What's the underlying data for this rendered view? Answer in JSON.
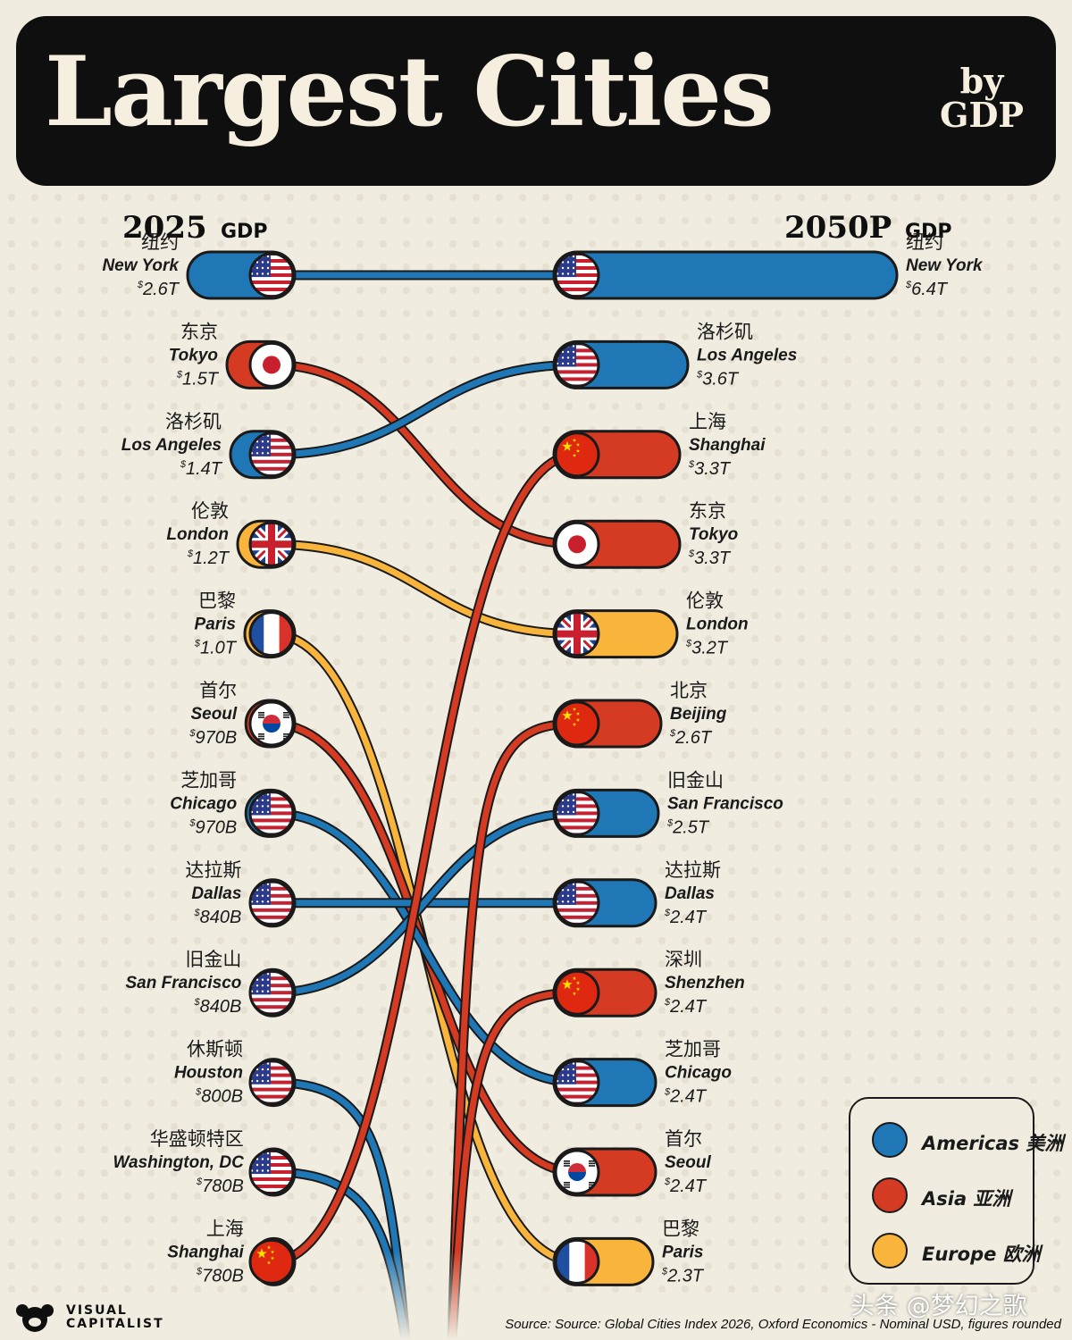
{
  "header": {
    "title": "Largest Cities",
    "by": "by",
    "gdp": "GDP"
  },
  "left_header": {
    "year": "2025",
    "suffix": "GDP"
  },
  "right_header": {
    "year": "2050P",
    "suffix": "GDP"
  },
  "legend": [
    {
      "label": "Americas 美洲",
      "region": "Americas"
    },
    {
      "label": "Asia 亚洲",
      "region": "Asia"
    },
    {
      "label": "Europe 欧洲",
      "region": "Europe"
    }
  ],
  "colors": {
    "Americas": "#1f77b6",
    "Asia": "#d53a22",
    "Europe": "#f9b43c",
    "outline": "#1a1a1a",
    "background": "#f1ece0"
  },
  "chart_data": {
    "type": "bar",
    "title": "Largest Cities by GDP",
    "series": [
      {
        "name": "2025 GDP",
        "unit": "$ trillion",
        "cities": [
          {
            "zh": "纽约",
            "en": "New York",
            "value": 2.6,
            "label": "2.6T",
            "region": "Americas",
            "flag": "usa"
          },
          {
            "zh": "东京",
            "en": "Tokyo",
            "value": 1.5,
            "label": "1.5T",
            "region": "Asia",
            "flag": "japan"
          },
          {
            "zh": "洛杉矶",
            "en": "Los Angeles",
            "value": 1.4,
            "label": "1.4T",
            "region": "Americas",
            "flag": "usa"
          },
          {
            "zh": "伦敦",
            "en": "London",
            "value": 1.2,
            "label": "1.2T",
            "region": "Europe",
            "flag": "uk"
          },
          {
            "zh": "巴黎",
            "en": "Paris",
            "value": 1.0,
            "label": "1.0T",
            "region": "Europe",
            "flag": "france"
          },
          {
            "zh": "首尔",
            "en": "Seoul",
            "value": 0.97,
            "label": "970B",
            "region": "Asia",
            "flag": "korea"
          },
          {
            "zh": "芝加哥",
            "en": "Chicago",
            "value": 0.97,
            "label": "970B",
            "region": "Americas",
            "flag": "usa"
          },
          {
            "zh": "达拉斯",
            "en": "Dallas",
            "value": 0.84,
            "label": "840B",
            "region": "Americas",
            "flag": "usa"
          },
          {
            "zh": "旧金山",
            "en": "San Francisco",
            "value": 0.84,
            "label": "840B",
            "region": "Americas",
            "flag": "usa"
          },
          {
            "zh": "休斯顿",
            "en": "Houston",
            "value": 0.8,
            "label": "800B",
            "region": "Americas",
            "flag": "usa"
          },
          {
            "zh": "华盛顿特区",
            "en": "Washington, DC",
            "value": 0.78,
            "label": "780B",
            "region": "Americas",
            "flag": "usa"
          },
          {
            "zh": "上海",
            "en": "Shanghai",
            "value": 0.78,
            "label": "780B",
            "region": "Asia",
            "flag": "china"
          }
        ]
      },
      {
        "name": "2050P GDP",
        "unit": "$ trillion",
        "cities": [
          {
            "zh": "纽约",
            "en": "New York",
            "value": 6.4,
            "label": "6.4T",
            "region": "Americas",
            "flag": "usa"
          },
          {
            "zh": "洛杉矶",
            "en": "Los Angeles",
            "value": 3.6,
            "label": "3.6T",
            "region": "Americas",
            "flag": "usa"
          },
          {
            "zh": "上海",
            "en": "Shanghai",
            "value": 3.3,
            "label": "3.3T",
            "region": "Asia",
            "flag": "china"
          },
          {
            "zh": "东京",
            "en": "Tokyo",
            "value": 3.3,
            "label": "3.3T",
            "region": "Asia",
            "flag": "japan"
          },
          {
            "zh": "伦敦",
            "en": "London",
            "value": 3.2,
            "label": "3.2T",
            "region": "Europe",
            "flag": "uk"
          },
          {
            "zh": "北京",
            "en": "Beijing",
            "value": 2.6,
            "label": "2.6T",
            "region": "Asia",
            "flag": "china"
          },
          {
            "zh": "旧金山",
            "en": "San Francisco",
            "value": 2.5,
            "label": "2.5T",
            "region": "Americas",
            "flag": "usa"
          },
          {
            "zh": "达拉斯",
            "en": "Dallas",
            "value": 2.4,
            "label": "2.4T",
            "region": "Americas",
            "flag": "usa"
          },
          {
            "zh": "深圳",
            "en": "Shenzhen",
            "value": 2.4,
            "label": "2.4T",
            "region": "Asia",
            "flag": "china"
          },
          {
            "zh": "芝加哥",
            "en": "Chicago",
            "value": 2.4,
            "label": "2.4T",
            "region": "Americas",
            "flag": "usa"
          },
          {
            "zh": "首尔",
            "en": "Seoul",
            "value": 2.4,
            "label": "2.4T",
            "region": "Asia",
            "flag": "korea"
          },
          {
            "zh": "巴黎",
            "en": "Paris",
            "value": 2.3,
            "label": "2.3T",
            "region": "Europe",
            "flag": "france"
          }
        ]
      }
    ],
    "rank_links": [
      {
        "city": "New York",
        "from_rank": 1,
        "to_rank": 1
      },
      {
        "city": "Tokyo",
        "from_rank": 2,
        "to_rank": 4
      },
      {
        "city": "Los Angeles",
        "from_rank": 3,
        "to_rank": 2
      },
      {
        "city": "London",
        "from_rank": 4,
        "to_rank": 5
      },
      {
        "city": "Paris",
        "from_rank": 5,
        "to_rank": 12
      },
      {
        "city": "Seoul",
        "from_rank": 6,
        "to_rank": 11
      },
      {
        "city": "Chicago",
        "from_rank": 7,
        "to_rank": 10
      },
      {
        "city": "Dallas",
        "from_rank": 8,
        "to_rank": 8
      },
      {
        "city": "San Francisco",
        "from_rank": 9,
        "to_rank": 7
      },
      {
        "city": "Houston",
        "from_rank": 10,
        "to_rank": null
      },
      {
        "city": "Washington, DC",
        "from_rank": 11,
        "to_rank": null
      },
      {
        "city": "Shanghai",
        "from_rank": 12,
        "to_rank": 3
      },
      {
        "city": "Beijing",
        "from_rank": null,
        "to_rank": 6
      },
      {
        "city": "Shenzhen",
        "from_rank": null,
        "to_rank": 9
      }
    ]
  },
  "attribution": {
    "line1": "VISUAL",
    "line2": "CAPITALIST"
  },
  "source": "Source: Source: Global Cities Index 2026, Oxford Economics - Nominal USD, figures rounded",
  "watermark": "头条 @梦幻之歌"
}
